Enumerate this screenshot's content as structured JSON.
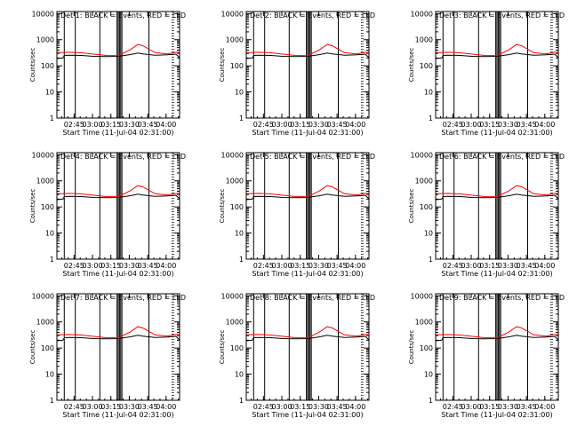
{
  "chart_data": [
    {
      "type": "line",
      "title": "Det 1: BLACK = Events, RED = LLD",
      "xlabel": "Start Time (11-Jul-04 02:31:00)",
      "ylabel": "Counts/sec",
      "yscale": "log",
      "ylim": [
        1,
        12000
      ],
      "xlim_min": [
        0,
        100
      ],
      "x_tick_labels": [
        "02:45",
        "03:00",
        "03:15",
        "03:30",
        "03:45",
        "04:00"
      ],
      "x_tick_values_min": [
        14,
        29,
        44,
        59,
        74,
        89
      ],
      "y_tick_labels": [
        "1",
        "10",
        "100",
        "1000",
        "10000"
      ],
      "y_tick_values": [
        1,
        10,
        100,
        1000,
        10000
      ],
      "series": [
        {
          "name": "Events",
          "color": "#000000",
          "x": [
            0,
            5,
            6,
            10,
            20,
            30,
            40,
            50,
            60,
            66,
            70,
            80,
            90,
            97,
            100
          ],
          "y": [
            190,
            200,
            250,
            255,
            250,
            230,
            225,
            230,
            270,
            310,
            285,
            255,
            265,
            280,
            205
          ]
        },
        {
          "name": "LLD",
          "color": "#ff0000",
          "x": [
            0,
            5,
            10,
            20,
            30,
            40,
            50,
            60,
            66,
            70,
            80,
            90,
            97,
            100
          ],
          "y": [
            320,
            325,
            330,
            315,
            280,
            250,
            245,
            420,
            660,
            590,
            320,
            285,
            330,
            330
          ]
        }
      ]
    },
    {
      "type": "line",
      "title": "Det 2: BLACK = Events, RED = LLD",
      "xlabel": "Start Time (11-Jul-04 02:31:00)",
      "ylabel": "Counts/sec",
      "yscale": "log",
      "ylim": [
        1,
        12000
      ],
      "xlim_min": [
        0,
        100
      ],
      "x_tick_labels": [
        "02:45",
        "03:00",
        "03:15",
        "03:30",
        "03:45",
        "04:00"
      ],
      "x_tick_values_min": [
        14,
        29,
        44,
        59,
        74,
        89
      ],
      "y_tick_labels": [
        "1",
        "10",
        "100",
        "1000",
        "10000"
      ],
      "y_tick_values": [
        1,
        10,
        100,
        1000,
        10000
      ],
      "series": [
        {
          "name": "Events",
          "color": "#000000",
          "x": [
            0,
            5,
            6,
            10,
            20,
            30,
            40,
            50,
            60,
            66,
            70,
            80,
            90,
            97,
            100
          ],
          "y": [
            190,
            200,
            250,
            255,
            250,
            230,
            225,
            230,
            270,
            310,
            285,
            255,
            265,
            280,
            205
          ]
        },
        {
          "name": "LLD",
          "color": "#ff0000",
          "x": [
            0,
            5,
            10,
            20,
            30,
            40,
            50,
            60,
            66,
            70,
            80,
            90,
            97,
            100
          ],
          "y": [
            320,
            325,
            330,
            315,
            280,
            250,
            245,
            420,
            660,
            590,
            320,
            285,
            330,
            330
          ]
        }
      ]
    },
    {
      "type": "line",
      "title": "Det 3: BLACK = Events, RED = LLD",
      "xlabel": "Start Time (11-Jul-04 02:31:00)",
      "ylabel": "Counts/sec",
      "yscale": "log",
      "ylim": [
        1,
        12000
      ],
      "xlim_min": [
        0,
        100
      ],
      "x_tick_labels": [
        "02:45",
        "03:00",
        "03:15",
        "03:30",
        "03:45",
        "04:00"
      ],
      "x_tick_values_min": [
        14,
        29,
        44,
        59,
        74,
        89
      ],
      "y_tick_labels": [
        "1",
        "10",
        "100",
        "1000",
        "10000"
      ],
      "y_tick_values": [
        1,
        10,
        100,
        1000,
        10000
      ],
      "series": [
        {
          "name": "Events",
          "color": "#000000",
          "x": [
            0,
            5,
            6,
            10,
            20,
            30,
            40,
            50,
            60,
            66,
            70,
            80,
            90,
            97,
            100
          ],
          "y": [
            190,
            200,
            250,
            255,
            250,
            230,
            225,
            230,
            270,
            310,
            285,
            255,
            265,
            280,
            205
          ]
        },
        {
          "name": "LLD",
          "color": "#ff0000",
          "x": [
            0,
            5,
            10,
            20,
            30,
            40,
            50,
            60,
            66,
            70,
            80,
            90,
            97,
            100
          ],
          "y": [
            320,
            325,
            330,
            315,
            280,
            250,
            245,
            420,
            660,
            590,
            320,
            285,
            330,
            330
          ]
        }
      ]
    },
    {
      "type": "line",
      "title": "Det 4: BLACK = Events, RED = LLD",
      "xlabel": "Start Time (11-Jul-04 02:31:00)",
      "ylabel": "Counts/sec",
      "yscale": "log",
      "ylim": [
        1,
        12000
      ],
      "xlim_min": [
        0,
        100
      ],
      "x_tick_labels": [
        "02:45",
        "03:00",
        "03:15",
        "03:30",
        "03:45",
        "04:00"
      ],
      "x_tick_values_min": [
        14,
        29,
        44,
        59,
        74,
        89
      ],
      "y_tick_labels": [
        "1",
        "10",
        "100",
        "1000",
        "10000"
      ],
      "y_tick_values": [
        1,
        10,
        100,
        1000,
        10000
      ],
      "series": [
        {
          "name": "Events",
          "color": "#000000",
          "x": [
            0,
            5,
            6,
            10,
            20,
            30,
            40,
            50,
            60,
            66,
            70,
            80,
            90,
            97,
            100
          ],
          "y": [
            190,
            200,
            250,
            255,
            250,
            230,
            225,
            230,
            270,
            310,
            285,
            255,
            265,
            280,
            205
          ]
        },
        {
          "name": "LLD",
          "color": "#ff0000",
          "x": [
            0,
            5,
            10,
            20,
            30,
            40,
            50,
            60,
            66,
            70,
            80,
            90,
            97,
            100
          ],
          "y": [
            320,
            325,
            330,
            315,
            280,
            250,
            245,
            420,
            660,
            590,
            320,
            285,
            330,
            330
          ]
        }
      ]
    },
    {
      "type": "line",
      "title": "Det 5: BLACK = Events, RED = LLD",
      "xlabel": "Start Time (11-Jul-04 02:31:00)",
      "ylabel": "Counts/sec",
      "yscale": "log",
      "ylim": [
        1,
        12000
      ],
      "xlim_min": [
        0,
        100
      ],
      "x_tick_labels": [
        "02:45",
        "03:00",
        "03:15",
        "03:30",
        "03:45",
        "04:00"
      ],
      "x_tick_values_min": [
        14,
        29,
        44,
        59,
        74,
        89
      ],
      "y_tick_labels": [
        "1",
        "10",
        "100",
        "1000",
        "10000"
      ],
      "y_tick_values": [
        1,
        10,
        100,
        1000,
        10000
      ],
      "series": [
        {
          "name": "Events",
          "color": "#000000",
          "x": [
            0,
            5,
            6,
            10,
            20,
            30,
            40,
            50,
            60,
            66,
            70,
            80,
            90,
            97,
            100
          ],
          "y": [
            190,
            200,
            250,
            255,
            250,
            230,
            225,
            230,
            270,
            310,
            285,
            255,
            265,
            280,
            205
          ]
        },
        {
          "name": "LLD",
          "color": "#ff0000",
          "x": [
            0,
            5,
            10,
            20,
            30,
            40,
            50,
            60,
            66,
            70,
            80,
            90,
            97,
            100
          ],
          "y": [
            320,
            325,
            330,
            315,
            280,
            250,
            245,
            420,
            660,
            590,
            320,
            285,
            330,
            330
          ]
        }
      ]
    },
    {
      "type": "line",
      "title": "Det 6: BLACK = Events, RED = LLD",
      "xlabel": "Start Time (11-Jul-04 02:31:00)",
      "ylabel": "Counts/sec",
      "yscale": "log",
      "ylim": [
        1,
        12000
      ],
      "xlim_min": [
        0,
        100
      ],
      "x_tick_labels": [
        "02:45",
        "03:00",
        "03:15",
        "03:30",
        "03:45",
        "04:00"
      ],
      "x_tick_values_min": [
        14,
        29,
        44,
        59,
        74,
        89
      ],
      "y_tick_labels": [
        "1",
        "10",
        "100",
        "1000",
        "10000"
      ],
      "y_tick_values": [
        1,
        10,
        100,
        1000,
        10000
      ],
      "series": [
        {
          "name": "Events",
          "color": "#000000",
          "x": [
            0,
            5,
            6,
            10,
            20,
            30,
            40,
            50,
            60,
            66,
            70,
            80,
            90,
            97,
            100
          ],
          "y": [
            190,
            200,
            250,
            255,
            250,
            230,
            225,
            230,
            270,
            310,
            285,
            255,
            265,
            280,
            205
          ]
        },
        {
          "name": "LLD",
          "color": "#ff0000",
          "x": [
            0,
            5,
            10,
            20,
            30,
            40,
            50,
            60,
            66,
            70,
            80,
            90,
            97,
            100
          ],
          "y": [
            320,
            325,
            330,
            315,
            280,
            250,
            245,
            420,
            660,
            590,
            320,
            285,
            330,
            330
          ]
        }
      ]
    },
    {
      "type": "line",
      "title": "Det 7: BLACK = Events, RED = LLD",
      "xlabel": "Start Time (11-Jul-04 02:31:00)",
      "ylabel": "Counts/sec",
      "yscale": "log",
      "ylim": [
        1,
        12000
      ],
      "xlim_min": [
        0,
        100
      ],
      "x_tick_labels": [
        "02:45",
        "03:00",
        "03:15",
        "03:30",
        "03:45",
        "04:00"
      ],
      "x_tick_values_min": [
        14,
        29,
        44,
        59,
        74,
        89
      ],
      "y_tick_labels": [
        "1",
        "10",
        "100",
        "1000",
        "10000"
      ],
      "y_tick_values": [
        1,
        10,
        100,
        1000,
        10000
      ],
      "series": [
        {
          "name": "Events",
          "color": "#000000",
          "x": [
            0,
            5,
            6,
            10,
            20,
            30,
            40,
            50,
            60,
            66,
            70,
            80,
            90,
            97,
            100
          ],
          "y": [
            190,
            200,
            250,
            255,
            250,
            230,
            225,
            230,
            270,
            310,
            285,
            255,
            265,
            280,
            205
          ]
        },
        {
          "name": "LLD",
          "color": "#ff0000",
          "x": [
            0,
            5,
            10,
            20,
            30,
            40,
            50,
            60,
            66,
            70,
            80,
            90,
            97,
            100
          ],
          "y": [
            320,
            325,
            330,
            315,
            280,
            250,
            245,
            420,
            660,
            590,
            320,
            285,
            330,
            330
          ]
        }
      ]
    },
    {
      "type": "line",
      "title": "Det 8: BLACK = Events, RED = LLD",
      "xlabel": "Start Time (11-Jul-04 02:31:00)",
      "ylabel": "Counts/sec",
      "yscale": "log",
      "ylim": [
        1,
        12000
      ],
      "xlim_min": [
        0,
        100
      ],
      "x_tick_labels": [
        "02:45",
        "03:00",
        "03:15",
        "03:30",
        "03:45",
        "04:00"
      ],
      "x_tick_values_min": [
        14,
        29,
        44,
        59,
        74,
        89
      ],
      "y_tick_labels": [
        "1",
        "10",
        "100",
        "1000",
        "10000"
      ],
      "y_tick_values": [
        1,
        10,
        100,
        1000,
        10000
      ],
      "series": [
        {
          "name": "Events",
          "color": "#000000",
          "x": [
            0,
            5,
            6,
            10,
            20,
            30,
            40,
            50,
            60,
            66,
            70,
            80,
            90,
            97,
            100
          ],
          "y": [
            190,
            200,
            250,
            255,
            250,
            230,
            225,
            230,
            270,
            310,
            285,
            255,
            265,
            280,
            205
          ]
        },
        {
          "name": "LLD",
          "color": "#ff0000",
          "x": [
            0,
            5,
            10,
            20,
            30,
            40,
            50,
            60,
            66,
            70,
            80,
            90,
            97,
            100
          ],
          "y": [
            320,
            325,
            330,
            315,
            280,
            250,
            245,
            420,
            660,
            590,
            320,
            285,
            330,
            330
          ]
        }
      ]
    },
    {
      "type": "line",
      "title": "Det 9: BLACK = Events, RED = LLD",
      "xlabel": "Start Time (11-Jul-04 02:31:00)",
      "ylabel": "Counts/sec",
      "yscale": "log",
      "ylim": [
        1,
        12000
      ],
      "xlim_min": [
        0,
        100
      ],
      "x_tick_labels": [
        "02:45",
        "03:00",
        "03:15",
        "03:30",
        "03:45",
        "04:00"
      ],
      "x_tick_values_min": [
        14,
        29,
        44,
        59,
        74,
        89
      ],
      "y_tick_labels": [
        "1",
        "10",
        "100",
        "1000",
        "10000"
      ],
      "y_tick_values": [
        1,
        10,
        100,
        1000,
        10000
      ],
      "series": [
        {
          "name": "Events",
          "color": "#000000",
          "x": [
            0,
            5,
            6,
            10,
            20,
            30,
            40,
            50,
            60,
            66,
            70,
            80,
            90,
            97,
            100
          ],
          "y": [
            190,
            200,
            250,
            255,
            250,
            230,
            225,
            230,
            270,
            310,
            285,
            255,
            265,
            280,
            205
          ]
        },
        {
          "name": "LLD",
          "color": "#ff0000",
          "x": [
            0,
            5,
            10,
            20,
            30,
            40,
            50,
            60,
            66,
            70,
            80,
            90,
            97,
            100
          ],
          "y": [
            320,
            325,
            330,
            315,
            280,
            250,
            245,
            420,
            660,
            590,
            320,
            285,
            330,
            330
          ]
        }
      ]
    }
  ],
  "markers": {
    "solid_lines_min": [
      -2,
      6,
      15,
      35,
      49,
      50,
      51,
      52,
      53,
      75
    ],
    "dotted_lines_min": [
      94,
      95
    ]
  }
}
